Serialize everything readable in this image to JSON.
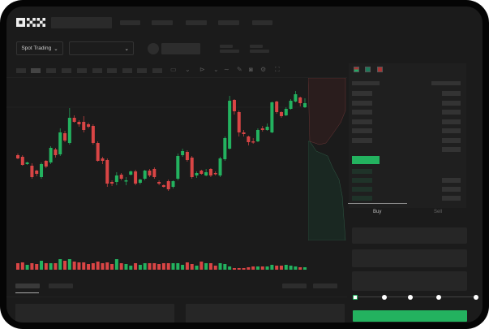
{
  "brand": {
    "logo": "OKX"
  },
  "toolbar": {
    "market_select": "Spot Trading",
    "pair_select": ""
  },
  "trade": {
    "tabs": [
      {
        "label": "Buy",
        "active": true
      },
      {
        "label": "Sell",
        "active": false
      }
    ],
    "leverage_steps": 5,
    "selected_step": 0
  },
  "colors": {
    "up": "#23b25f",
    "down": "#d94545",
    "bg": "#1b1b1b",
    "accent": "#23b25f"
  },
  "icons": [
    "chevron-down-icon",
    "line-icon",
    "pencil-icon",
    "camera-icon",
    "gear-icon",
    "fullscreen-icon",
    "orderbook-both-icon",
    "orderbook-bids-icon",
    "orderbook-asks-icon"
  ],
  "chart_data": {
    "type": "candlestick",
    "ohlc": [
      [
        117,
        119,
        112,
        113
      ],
      [
        115,
        117,
        104,
        105
      ],
      [
        106,
        109,
        105,
        108
      ],
      [
        104,
        107,
        88,
        90
      ],
      [
        98,
        99,
        91,
        94
      ],
      [
        90,
        108,
        88,
        106
      ],
      [
        110,
        111,
        101,
        103
      ],
      [
        108,
        128,
        106,
        126
      ],
      [
        124,
        126,
        114,
        117
      ],
      [
        118,
        150,
        116,
        145
      ],
      [
        144,
        147,
        133,
        135
      ],
      [
        132,
        175,
        130,
        163
      ],
      [
        163,
        166,
        157,
        158
      ],
      [
        158,
        160,
        152,
        155
      ],
      [
        158,
        165,
        145,
        148
      ],
      [
        155,
        157,
        150,
        152
      ],
      [
        153,
        155,
        130,
        132
      ],
      [
        132,
        134,
        109,
        110
      ],
      [
        113,
        115,
        106,
        110
      ],
      [
        111,
        113,
        78,
        82
      ],
      [
        84,
        86,
        79,
        82
      ],
      [
        84,
        96,
        80,
        92
      ],
      [
        93,
        95,
        86,
        88
      ],
      [
        85,
        90,
        80,
        86
      ],
      [
        93,
        98,
        92,
        97
      ],
      [
        97,
        99,
        80,
        82
      ],
      [
        83,
        88,
        81,
        87
      ],
      [
        88,
        99,
        86,
        98
      ],
      [
        98,
        100,
        90,
        92
      ],
      [
        100,
        102,
        88,
        90
      ],
      [
        84,
        86,
        80,
        82
      ],
      [
        80,
        81,
        77,
        78
      ],
      [
        85,
        87,
        73,
        75
      ],
      [
        78,
        86,
        76,
        85
      ],
      [
        88,
        119,
        86,
        116
      ],
      [
        117,
        125,
        115,
        122
      ],
      [
        121,
        123,
        109,
        111
      ],
      [
        114,
        116,
        88,
        90
      ],
      [
        92,
        97,
        89,
        95
      ],
      [
        98,
        99,
        93,
        94
      ],
      [
        92,
        100,
        91,
        96
      ],
      [
        100,
        101,
        90,
        92
      ],
      [
        95,
        97,
        92,
        94
      ],
      [
        92,
        115,
        90,
        113
      ],
      [
        112,
        140,
        110,
        138
      ],
      [
        125,
        190,
        124,
        184
      ],
      [
        185,
        186,
        167,
        171
      ],
      [
        170,
        172,
        140,
        145
      ],
      [
        145,
        148,
        140,
        143
      ],
      [
        140,
        141,
        129,
        133
      ],
      [
        134,
        138,
        131,
        133
      ],
      [
        134,
        150,
        133,
        148
      ],
      [
        150,
        153,
        146,
        148
      ],
      [
        148,
        156,
        147,
        152
      ],
      [
        145,
        183,
        144,
        182
      ],
      [
        183,
        184,
        168,
        170
      ],
      [
        170,
        171,
        163,
        165
      ],
      [
        166,
        176,
        165,
        174
      ],
      [
        174,
        186,
        173,
        184
      ],
      [
        183,
        196,
        182,
        192
      ],
      [
        188,
        189,
        177,
        181
      ],
      [
        176,
        187,
        175,
        181
      ]
    ],
    "volume": [
      8,
      9,
      6,
      8,
      7,
      11,
      8,
      8,
      8,
      13,
      11,
      13,
      10,
      9,
      9,
      7,
      8,
      10,
      8,
      9,
      7,
      13,
      8,
      7,
      5,
      8,
      6,
      8,
      8,
      8,
      7,
      8,
      8,
      8,
      8,
      6,
      9,
      7,
      5,
      10,
      8,
      8,
      5,
      8,
      7,
      4,
      2,
      2,
      2,
      3,
      4,
      4,
      4,
      4,
      6,
      5,
      5,
      6,
      5,
      4,
      3,
      3
    ]
  }
}
